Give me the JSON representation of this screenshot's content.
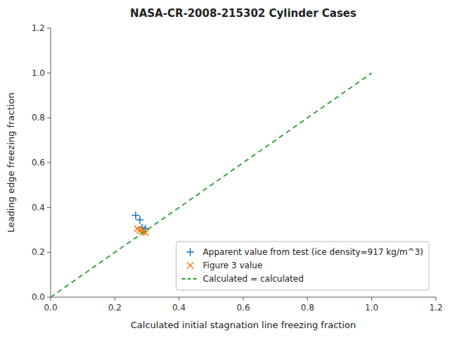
{
  "chart_data": {
    "type": "scatter",
    "title": "NASA-CR-2008-215302 Cylinder Cases",
    "xlabel": "Calculated initial stagnation line freezing fraction",
    "ylabel": "Leading edge freezing fraction",
    "xlim": [
      0.0,
      1.2
    ],
    "ylim": [
      0.0,
      1.2
    ],
    "xticks": [
      {
        "value": 0.0,
        "label": "0.0"
      },
      0.2,
      0.4,
      0.6,
      0.8,
      {
        "value": 1.0,
        "label": "1.0"
      },
      1.2
    ],
    "yticks": [
      {
        "value": 0.0,
        "label": "0.0"
      },
      0.2,
      0.4,
      0.6,
      0.8,
      {
        "value": 1.0,
        "label": "1.0"
      },
      1.2
    ],
    "legend": "lower right",
    "series": [
      {
        "name": "Apparent value from test (ice density=917 kg/m^3)",
        "color": "#1f77b4",
        "marker": "plus",
        "x": [
          0.265,
          0.278,
          0.285,
          0.295
        ],
        "values": [
          0.365,
          0.345,
          0.31,
          0.305
        ]
      },
      {
        "name": "Figure 3 value",
        "color": "#ff7f0e",
        "marker": "x",
        "x": [
          0.27,
          0.278,
          0.285,
          0.295
        ],
        "values": [
          0.305,
          0.298,
          0.292,
          0.288
        ]
      },
      {
        "name": "Calculated = calculated",
        "type": "line",
        "line_style": "dashed",
        "color": "#2ca02c",
        "x": [
          0.0,
          1.0
        ],
        "values": [
          0.0,
          1.0
        ]
      }
    ]
  }
}
